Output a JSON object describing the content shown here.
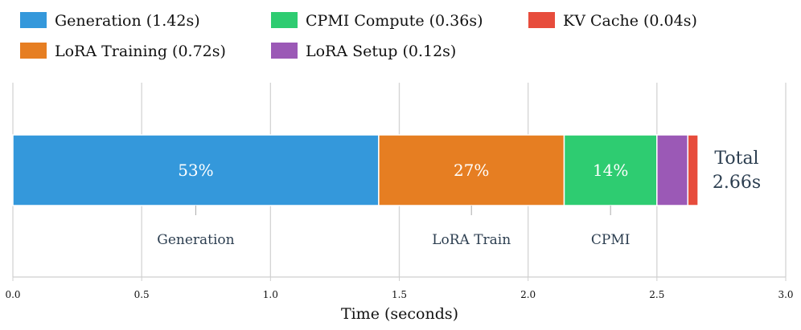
{
  "chart_data": {
    "type": "bar",
    "orientation": "horizontal-stacked",
    "xlabel": "Time (seconds)",
    "xlim": [
      0.0,
      3.0
    ],
    "xticks": [
      "0.0",
      "0.5",
      "1.0",
      "1.5",
      "2.0",
      "2.5",
      "3.0"
    ],
    "grid": true,
    "legend_position": "top",
    "series": [
      {
        "name": "Generation (1.42s)",
        "value": 1.42,
        "color": "#3498db",
        "pct_label": "53%"
      },
      {
        "name": "LoRA Training (0.72s)",
        "value": 0.72,
        "color": "#e67e22",
        "pct_label": "27%"
      },
      {
        "name": "CPMI Compute (0.36s)",
        "value": 0.36,
        "color": "#2ecc71",
        "pct_label": "14%"
      },
      {
        "name": "LoRA Setup (0.12s)",
        "value": 0.12,
        "color": "#9b59b6",
        "pct_label": ""
      },
      {
        "name": "KV Cache (0.04s)",
        "value": 0.04,
        "color": "#e74c3c",
        "pct_label": ""
      }
    ],
    "annotations": [
      {
        "text": "Generation",
        "x": 0.71
      },
      {
        "text": "LoRA Train",
        "x": 1.78
      },
      {
        "text": "CPMI",
        "x": 2.32
      }
    ],
    "total": {
      "line1": "Total",
      "line2": "2.66s"
    }
  }
}
